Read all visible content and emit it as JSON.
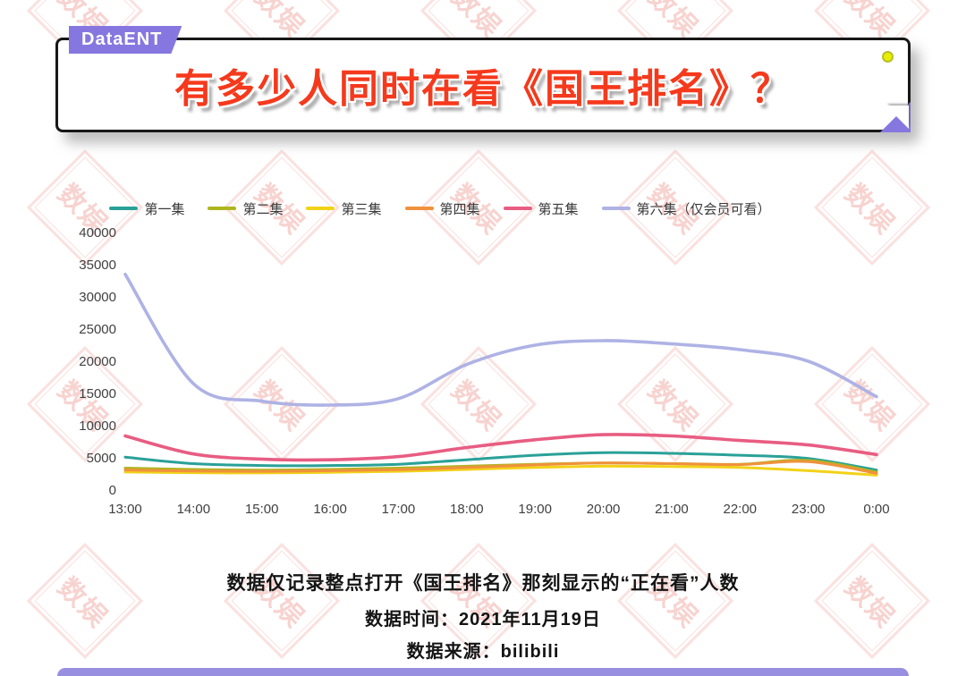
{
  "page": {
    "badge": "DataENT",
    "title": "有多少人同时在看《国王排名》？",
    "watermark_text": "数娱",
    "footnotes": {
      "note": "数据仅记录整点打开《国王排名》那刻显示的“正在看”人数",
      "date": "数据时间：2021年11月19日",
      "source": "数据来源：bilibili"
    }
  },
  "colors": {
    "title": "#f5391c",
    "badge_bg": "#8677e0",
    "bottom_bar": "#988fe0",
    "watermark": "#e0564a"
  },
  "chart_data": {
    "type": "line",
    "title": "有多少人同时在看《国王排名》？",
    "xlabel": "",
    "ylabel": "",
    "x": [
      "13:00",
      "14:00",
      "15:00",
      "16:00",
      "17:00",
      "18:00",
      "19:00",
      "20:00",
      "21:00",
      "22:00",
      "23:00",
      "0:00"
    ],
    "ylim": [
      0,
      40000
    ],
    "ytick_step": 5000,
    "grid": false,
    "legend_position": "top",
    "series": [
      {
        "name": "第一集",
        "color": "#2aa198",
        "values": [
          5100,
          4100,
          3800,
          3800,
          4000,
          4700,
          5400,
          5800,
          5700,
          5400,
          4900,
          3100
        ]
      },
      {
        "name": "第二集",
        "color": "#aeb61f",
        "values": [
          3400,
          3200,
          3100,
          3200,
          3400,
          3700,
          4000,
          4200,
          4100,
          4000,
          4600,
          2800
        ]
      },
      {
        "name": "第三集",
        "color": "#f2d218",
        "values": [
          2800,
          2700,
          2650,
          2750,
          2900,
          3200,
          3500,
          3700,
          3650,
          3500,
          3000,
          2300
        ]
      },
      {
        "name": "第四集",
        "color": "#f0913d",
        "values": [
          3100,
          2950,
          2900,
          3000,
          3150,
          3500,
          3900,
          4200,
          4100,
          3950,
          4400,
          2600
        ]
      },
      {
        "name": "第五集",
        "color": "#e85d82",
        "values": [
          8400,
          5600,
          4800,
          4700,
          5200,
          6600,
          7800,
          8600,
          8400,
          7700,
          7000,
          5500
        ]
      },
      {
        "name": "第六集（仅会员可看）",
        "color": "#aeb2e4",
        "values": [
          33500,
          16500,
          13800,
          13200,
          14200,
          19500,
          22500,
          23200,
          22700,
          21800,
          20000,
          14500
        ]
      }
    ]
  }
}
